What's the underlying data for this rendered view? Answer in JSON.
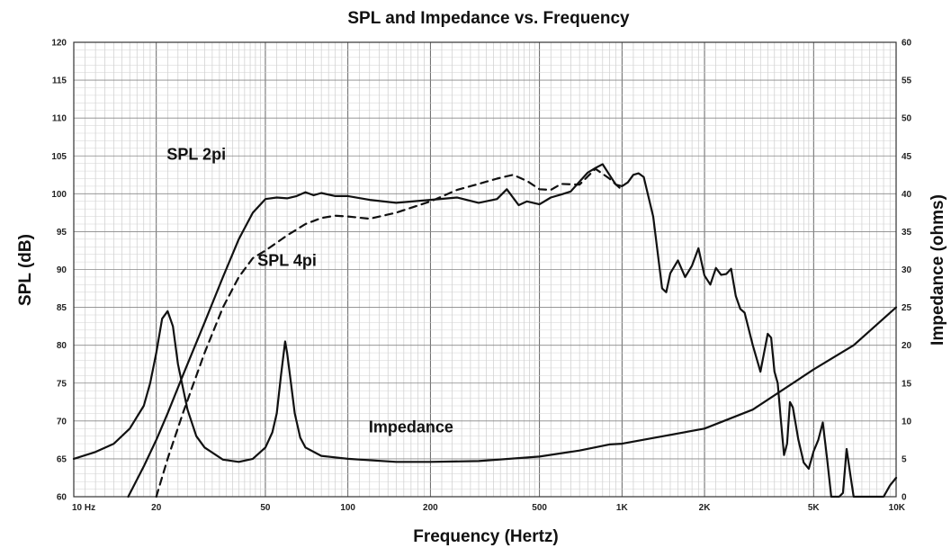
{
  "chart_data": {
    "type": "line",
    "title": "SPL and Impedance vs. Frequency",
    "xlabel": "Frequency (Hertz)",
    "ylabel": "SPL (dB)",
    "y2label": "Impedance (ohms)",
    "xscale": "log",
    "xlim": [
      10,
      10000
    ],
    "ylim": [
      60,
      120
    ],
    "y2lim": [
      0,
      60
    ],
    "grid": true,
    "x_ticks": [
      {
        "value": 10,
        "label": "10  Hz"
      },
      {
        "value": 20,
        "label": "20"
      },
      {
        "value": 50,
        "label": "50"
      },
      {
        "value": 100,
        "label": "100"
      },
      {
        "value": 200,
        "label": "200"
      },
      {
        "value": 500,
        "label": "500"
      },
      {
        "value": 1000,
        "label": "1K"
      },
      {
        "value": 2000,
        "label": "2K"
      },
      {
        "value": 5000,
        "label": "5K"
      },
      {
        "value": 10000,
        "label": "10K"
      }
    ],
    "y_ticks": [
      60,
      65,
      70,
      75,
      80,
      85,
      90,
      95,
      100,
      105,
      110,
      115,
      120
    ],
    "y2_ticks": [
      0,
      5,
      10,
      15,
      20,
      25,
      30,
      35,
      40,
      45,
      50,
      55,
      60
    ],
    "series": [
      {
        "name": "SPL 2pi",
        "axis": "left",
        "style": "solid",
        "color": "#111111",
        "x": [
          15.8,
          18,
          20,
          22,
          25,
          30,
          35,
          40,
          45,
          50,
          55,
          60,
          65,
          70,
          75,
          80,
          90,
          100,
          120,
          150,
          200,
          250,
          300,
          350,
          380,
          420,
          450,
          500,
          550,
          600,
          650,
          700,
          750,
          800,
          850,
          900,
          950,
          1000,
          1050,
          1100,
          1150,
          1200,
          1300,
          1400,
          1450,
          1500,
          1600,
          1700,
          1800,
          1900,
          2000,
          2100,
          2200,
          2300,
          2400,
          2500,
          2600,
          2700,
          2800,
          3000,
          3200,
          3400,
          3500,
          3600,
          3700,
          3800,
          3900,
          4000,
          4100,
          4200,
          4400,
          4600,
          4800,
          5000,
          5200,
          5400,
          5600,
          5800,
          6000,
          6200,
          6400,
          6600,
          6800,
          7000,
          8000,
          9000,
          9500,
          10000
        ],
        "y": [
          60,
          64,
          67.5,
          71,
          76,
          83,
          89,
          94,
          97.5,
          99.3,
          99.5,
          99.4,
          99.7,
          100.2,
          99.8,
          100.1,
          99.7,
          99.7,
          99.2,
          98.8,
          99.2,
          99.5,
          98.8,
          99.3,
          100.6,
          98.5,
          99.0,
          98.6,
          99.5,
          99.9,
          100.3,
          101.6,
          102.8,
          103.4,
          103.9,
          102.5,
          101.2,
          101.0,
          101.5,
          102.5,
          102.7,
          102.2,
          97.0,
          87.5,
          87.0,
          89.5,
          91.2,
          89.0,
          90.5,
          92.8,
          89.2,
          88.0,
          90.2,
          89.3,
          89.4,
          90.1,
          86.5,
          84.8,
          84.3,
          80.0,
          76.5,
          81.5,
          81.0,
          76.5,
          75.0,
          70.0,
          65.5,
          67.0,
          72.5,
          71.8,
          67.5,
          64.5,
          63.7,
          66.0,
          67.5,
          69.8,
          65.0,
          60.0,
          60.0,
          60.0,
          60.5,
          66.3,
          63.0,
          60.0,
          60.0,
          60.0,
          61.5,
          62.5
        ]
      },
      {
        "name": "SPL 4pi",
        "axis": "left",
        "style": "dashed",
        "color": "#111111",
        "x": [
          20,
          22,
          25,
          30,
          35,
          40,
          45,
          50,
          60,
          70,
          80,
          90,
          100,
          120,
          150,
          200,
          250,
          300,
          350,
          400,
          450,
          500,
          550,
          600,
          700,
          800,
          900,
          1000
        ],
        "y": [
          60,
          65,
          71,
          79,
          85,
          89,
          91.5,
          92.5,
          94.5,
          96,
          96.8,
          97.1,
          97.0,
          96.7,
          97.5,
          99.0,
          100.5,
          101.3,
          102.0,
          102.5,
          101.7,
          100.6,
          100.5,
          101.3,
          101.2,
          103.3,
          102.0,
          100.5
        ]
      },
      {
        "name": "Impedance",
        "axis": "right",
        "style": "solid",
        "color": "#111111",
        "x": [
          10,
          12,
          14,
          16,
          18,
          19,
          20,
          21,
          22,
          23,
          24,
          26,
          28,
          30,
          35,
          40,
          45,
          50,
          53,
          55,
          57,
          59,
          60,
          62,
          64,
          67,
          70,
          80,
          100,
          150,
          200,
          300,
          500,
          700,
          900,
          1000,
          2000,
          3000,
          5000,
          7000,
          10000
        ],
        "y": [
          5.0,
          5.9,
          7.0,
          9.0,
          12.0,
          15.0,
          19.0,
          23.5,
          24.5,
          22.5,
          17.5,
          11.5,
          8.0,
          6.5,
          4.9,
          4.6,
          5.0,
          6.5,
          8.5,
          11.0,
          16.0,
          20.5,
          19.0,
          15.0,
          11.0,
          7.8,
          6.5,
          5.4,
          5.0,
          4.6,
          4.6,
          4.7,
          5.3,
          6.1,
          6.9,
          7.0,
          9.0,
          11.5,
          16.8,
          20.0,
          25.0
        ]
      }
    ],
    "annotations": [
      {
        "text": "SPL 2pi",
        "x": 28,
        "y": 104.5
      },
      {
        "text": "SPL 4pi",
        "x": 60,
        "y": 90.5
      },
      {
        "text": "Impedance",
        "x": 170,
        "y": 68.5
      }
    ]
  }
}
